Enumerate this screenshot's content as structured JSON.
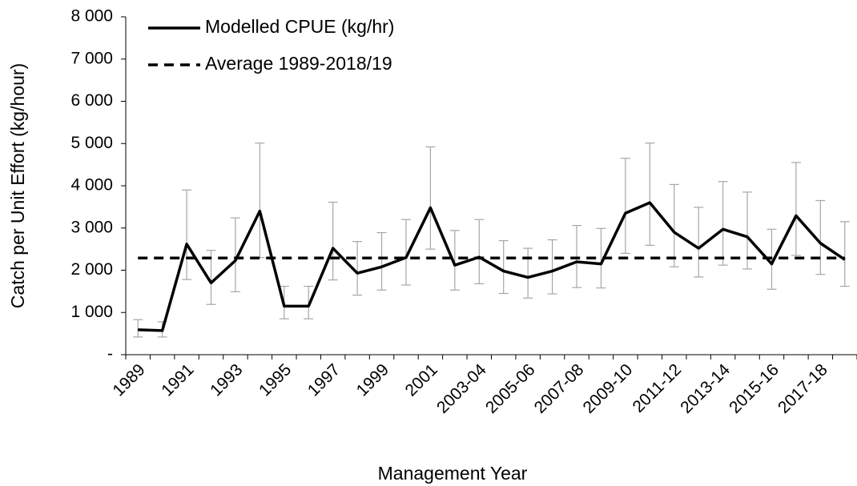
{
  "chart_data": {
    "type": "line",
    "x_label": "Management Year",
    "y_label": "Catch per Unit Effort (kg/hour)",
    "categories": [
      "1989",
      null,
      "1991",
      null,
      "1993",
      null,
      "1995",
      null,
      "1997",
      null,
      "1999",
      null,
      "2001",
      null,
      "2003-04",
      null,
      "2005-06",
      null,
      "2007-08",
      null,
      "2009-10",
      null,
      "2011-12",
      null,
      "2013-14",
      null,
      "2015-16",
      null,
      "2017-18",
      null
    ],
    "series": [
      {
        "name": "Modelled CPUE (kg/hr)",
        "color": "#000000",
        "values": [
          590,
          570,
          2620,
          1700,
          2230,
          3400,
          1150,
          1150,
          2520,
          1930,
          2080,
          2300,
          3480,
          2120,
          2310,
          1980,
          1830,
          1980,
          2200,
          2150,
          3350,
          3600,
          2900,
          2520,
          2970,
          2790,
          2150,
          3290,
          2640,
          2250
        ],
        "upper": [
          830,
          780,
          3900,
          2470,
          3240,
          5010,
          1620,
          1620,
          3610,
          2680,
          2890,
          3200,
          4920,
          2940,
          3200,
          2700,
          2520,
          2720,
          3060,
          2990,
          4650,
          5010,
          4030,
          3490,
          4100,
          3850,
          2970,
          4550,
          3650,
          3150
        ],
        "lower": [
          420,
          420,
          1780,
          1190,
          1490,
          2300,
          850,
          850,
          1770,
          1410,
          1530,
          1650,
          2500,
          1530,
          1680,
          1450,
          1340,
          1440,
          1590,
          1580,
          2400,
          2590,
          2080,
          1840,
          2120,
          2030,
          1550,
          2350,
          1900,
          1620
        ],
        "error_color": "#a6a6a6"
      },
      {
        "name": "Average 1989-2018/19",
        "color": "#000000",
        "dashed": true,
        "value": 2290
      }
    ],
    "ylim": [
      0,
      8000
    ],
    "yticks": [
      {
        "value": 0,
        "label": "-"
      },
      {
        "value": 1000,
        "label": "1 000"
      },
      {
        "value": 2000,
        "label": "2 000"
      },
      {
        "value": 3000,
        "label": "3 000"
      },
      {
        "value": 4000,
        "label": "4 000"
      },
      {
        "value": 5000,
        "label": "5 000"
      },
      {
        "value": 6000,
        "label": "6 000"
      },
      {
        "value": 7000,
        "label": "7 000"
      },
      {
        "value": 8000,
        "label": "8 000"
      }
    ],
    "grid": false,
    "legend": "top-left"
  }
}
